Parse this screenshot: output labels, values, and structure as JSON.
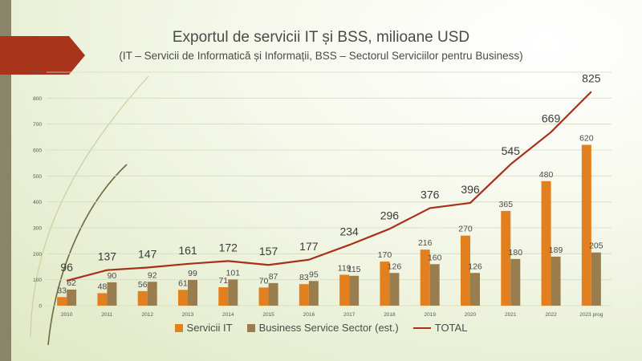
{
  "slide": {
    "title": "Exportul de servicii IT și BSS, milioane USD",
    "subtitle": "(IT – Servicii de Informatică și Informații, BSS – Sectorul Serviciilor pentru Business)"
  },
  "colors": {
    "it": "#e2801f",
    "bss": "#9a7d4f",
    "total": "#a8301a",
    "accent": "#a8341c"
  },
  "chart_data": {
    "type": "bar",
    "categories": [
      "2010",
      "2011",
      "2012",
      "2013",
      "2014",
      "2015",
      "2016",
      "2017",
      "2018",
      "2019",
      "2020",
      "2021",
      "2022",
      "2023 prog"
    ],
    "ylim": [
      0,
      900
    ],
    "yticks": [
      0,
      100,
      200,
      300,
      400,
      500,
      600,
      700,
      800,
      900
    ],
    "series": [
      {
        "name": "Servicii IT",
        "kind": "bar",
        "values": [
          33,
          48,
          56,
          61,
          71,
          70,
          83,
          119,
          170,
          216,
          270,
          365,
          480,
          620
        ]
      },
      {
        "name": "Business Service Sector (est.)",
        "kind": "bar",
        "values": [
          62,
          90,
          92,
          99,
          101,
          87,
          95,
          115,
          126,
          160,
          126,
          180,
          189,
          205
        ]
      },
      {
        "name": "TOTAL",
        "kind": "line",
        "values": [
          96,
          137,
          147,
          161,
          172,
          157,
          177,
          234,
          296,
          376,
          396,
          545,
          669,
          825
        ]
      }
    ],
    "legend_position": "bottom",
    "grid": true
  }
}
